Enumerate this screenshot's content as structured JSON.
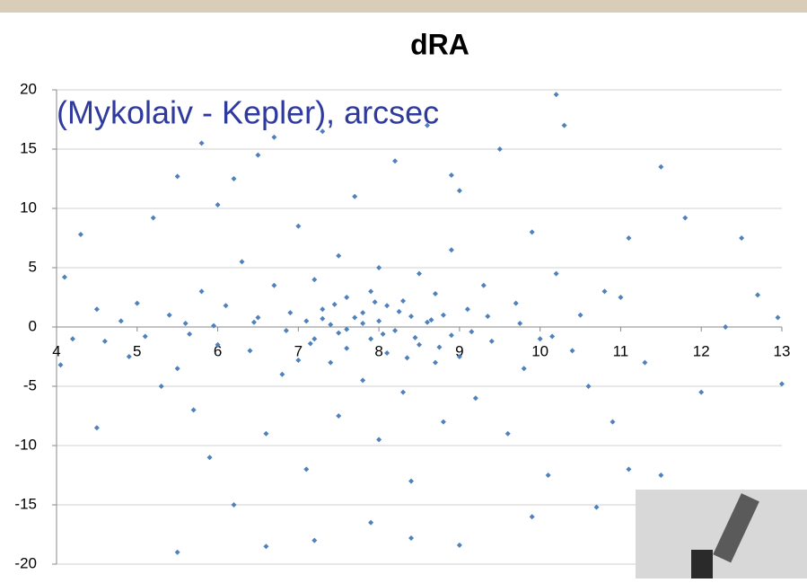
{
  "chart_data": {
    "type": "scatter",
    "title": "dRA",
    "subtitle": "(Mykolaiv - Kepler), arcsec",
    "color": "#4f81bd",
    "grid": true,
    "xlim": [
      4,
      13
    ],
    "xticks": [
      4,
      5,
      6,
      7,
      8,
      9,
      10,
      11,
      12,
      13
    ],
    "ylim": [
      -20,
      20
    ],
    "yticks": [
      -20,
      -15,
      -10,
      -5,
      0,
      5,
      10,
      15,
      20
    ],
    "x": [
      4.05,
      4.1,
      4.2,
      4.3,
      4.5,
      4.6,
      4.8,
      4.9,
      5.0,
      5.1,
      5.2,
      5.3,
      5.4,
      5.5,
      5.5,
      5.6,
      5.7,
      5.8,
      5.9,
      6.0,
      6.0,
      6.1,
      6.2,
      6.3,
      6.4,
      6.5,
      6.5,
      6.6,
      6.7,
      6.8,
      6.9,
      7.0,
      7.0,
      7.1,
      7.1,
      7.2,
      7.2,
      7.3,
      7.3,
      7.4,
      7.4,
      7.5,
      7.5,
      7.5,
      7.6,
      7.6,
      7.7,
      7.7,
      7.8,
      7.8,
      7.9,
      7.9,
      8.0,
      8.0,
      8.0,
      8.1,
      8.1,
      8.2,
      8.2,
      8.3,
      8.3,
      8.4,
      8.4,
      8.5,
      8.5,
      8.6,
      8.6,
      8.7,
      8.7,
      8.8,
      8.8,
      8.9,
      8.9,
      9.0,
      9.0,
      9.1,
      9.2,
      9.3,
      9.4,
      9.5,
      9.6,
      9.7,
      9.8,
      9.9,
      10.0,
      10.1,
      10.2,
      10.3,
      10.4,
      10.5,
      10.6,
      10.8,
      10.9,
      11.0,
      11.1,
      11.3,
      11.5,
      11.8,
      12.0,
      12.3,
      12.5,
      12.7,
      12.95,
      13.0,
      10.2,
      7.9,
      6.6,
      5.5,
      7.2,
      8.4,
      9.0,
      11.5,
      4.5,
      6.2,
      8.9,
      5.8,
      6.7,
      9.9,
      10.7,
      11.1,
      7.3,
      7.6,
      7.8,
      8.05,
      8.25,
      8.45,
      8.65,
      7.45,
      7.15,
      8.75,
      7.95,
      8.35,
      9.15,
      9.35,
      6.85,
      6.45,
      5.95,
      5.65,
      9.75,
      10.15
    ],
    "values": [
      -3.2,
      4.2,
      -1.0,
      7.8,
      1.5,
      -1.2,
      0.5,
      -2.5,
      2.0,
      -0.8,
      9.2,
      -5.0,
      1.0,
      12.7,
      -3.5,
      0.3,
      -7.0,
      3.0,
      -11.0,
      10.3,
      -1.5,
      1.8,
      -15.0,
      5.5,
      -2.0,
      14.5,
      0.8,
      -9.0,
      3.5,
      -4.0,
      1.2,
      8.5,
      -2.8,
      0.5,
      -12.0,
      4.0,
      -1.0,
      16.5,
      1.5,
      -3.0,
      0.2,
      6.0,
      -0.5,
      -7.5,
      2.5,
      -1.8,
      11.0,
      0.8,
      -4.5,
      1.2,
      3.0,
      -1.0,
      -9.5,
      0.5,
      5.0,
      -2.2,
      1.8,
      14.0,
      -0.3,
      2.2,
      -5.5,
      0.9,
      -13.0,
      4.5,
      -1.5,
      17.0,
      0.4,
      -3.0,
      2.8,
      -8.0,
      1.0,
      6.5,
      -0.7,
      11.5,
      -2.5,
      1.5,
      -6.0,
      3.5,
      -1.2,
      15.0,
      -9.0,
      2.0,
      -3.5,
      8.0,
      -1.0,
      -12.5,
      4.5,
      17.0,
      -2.0,
      1.0,
      -5.0,
      3.0,
      -8.0,
      2.5,
      7.5,
      -3.0,
      13.5,
      9.2,
      -5.5,
      0.0,
      7.5,
      2.7,
      0.8,
      -4.8,
      19.6,
      -16.5,
      -18.5,
      -19.0,
      -18.0,
      -17.8,
      -18.4,
      -12.5,
      -8.5,
      12.5,
      12.8,
      15.5,
      16.0,
      -16.0,
      -15.2,
      -12.0,
      0.7,
      -0.2,
      0.3,
      -0.6,
      1.3,
      -0.9,
      0.6,
      1.9,
      -1.4,
      -1.7,
      2.1,
      -2.6,
      -0.4,
      0.9,
      -0.3,
      0.4,
      0.1,
      -0.6,
      0.3,
      -0.8
    ]
  }
}
